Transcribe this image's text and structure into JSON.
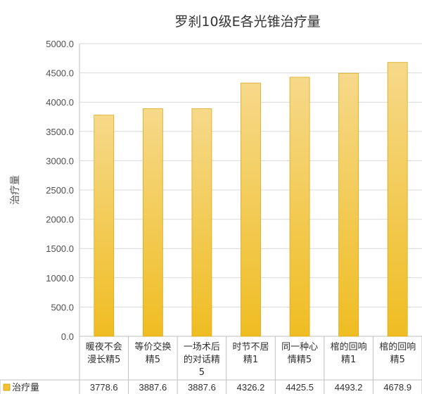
{
  "chart_data": {
    "type": "bar",
    "title": "罗刹10级E各光锥治疗量",
    "ylabel": "治疗量",
    "xlabel": "",
    "ylim": [
      0,
      5000
    ],
    "yticks": [
      "0.0",
      "500.0",
      "1000.0",
      "1500.0",
      "2000.0",
      "2500.0",
      "3000.0",
      "3500.0",
      "4000.0",
      "4500.0",
      "5000.0"
    ],
    "grid": true,
    "categories": [
      [
        "暖夜不会",
        "漫长精5"
      ],
      [
        "等价交换",
        "精5"
      ],
      [
        "一场术后",
        "的对话精",
        "5"
      ],
      [
        "时节不居",
        "精1"
      ],
      [
        "同一种心",
        "情精5"
      ],
      [
        "棺的回响",
        "精1"
      ],
      [
        "棺的回响",
        "精5"
      ]
    ],
    "series": [
      {
        "name": "治疗量",
        "values": [
          3778.6,
          3887.6,
          3887.6,
          4326.2,
          4425.5,
          4493.2,
          4678.9
        ],
        "labels": [
          "3778.6",
          "3887.6",
          "3887.6",
          "4326.2",
          "4425.5",
          "4493.2",
          "4678.9"
        ],
        "color": "#f2c230"
      }
    ],
    "legend_position": "bottom-left (data table)"
  }
}
